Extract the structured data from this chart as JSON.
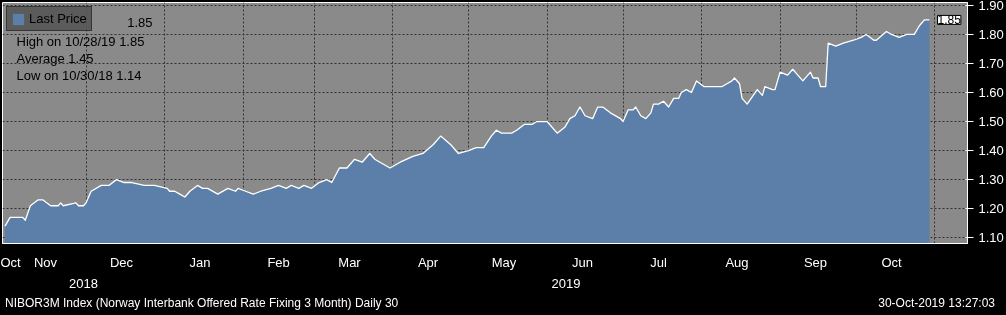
{
  "chart_data": {
    "type": "area",
    "subtitle": "NIBOR3M Index (Norway Interbank Offered Rate Fixing 3 Month)  Daily 30",
    "x": [
      "2018-10-30",
      "2018-11-01",
      "2018-11-06",
      "2018-11-07",
      "2018-11-09",
      "2018-11-12",
      "2018-11-14",
      "2018-11-17",
      "2018-11-20",
      "2018-11-21",
      "2018-11-22",
      "2018-11-27",
      "2018-11-28",
      "2018-11-30",
      "2018-12-01",
      "2018-12-03",
      "2018-12-07",
      "2018-12-10",
      "2018-12-13",
      "2018-12-16",
      "2018-12-19",
      "2018-12-24",
      "2018-12-28",
      "2019-01-02",
      "2019-01-03",
      "2019-01-05",
      "2019-01-07",
      "2019-01-09",
      "2019-01-11",
      "2019-01-14",
      "2019-01-16",
      "2019-01-18",
      "2019-01-22",
      "2019-01-26",
      "2019-01-29",
      "2019-01-30",
      "2019-02-02",
      "2019-02-05",
      "2019-02-08",
      "2019-02-12",
      "2019-02-15",
      "2019-02-18",
      "2019-02-20",
      "2019-02-23",
      "2019-02-25",
      "2019-02-28",
      "2019-03-03",
      "2019-03-06",
      "2019-03-08",
      "2019-03-11",
      "2019-03-14",
      "2019-03-17",
      "2019-03-20",
      "2019-03-23",
      "2019-03-25",
      "2019-03-27",
      "2019-03-31",
      "2019-04-04",
      "2019-04-09",
      "2019-04-13",
      "2019-04-17",
      "2019-04-20",
      "2019-04-24",
      "2019-04-27",
      "2019-05-01",
      "2019-05-04",
      "2019-05-07",
      "2019-05-10",
      "2019-05-12",
      "2019-05-14",
      "2019-05-18",
      "2019-05-20",
      "2019-05-23",
      "2019-05-26",
      "2019-05-28",
      "2019-06-01",
      "2019-06-05",
      "2019-06-08",
      "2019-06-10",
      "2019-06-12",
      "2019-06-14",
      "2019-06-16",
      "2019-06-19",
      "2019-06-21",
      "2019-06-23",
      "2019-06-26",
      "2019-06-30",
      "2019-07-01",
      "2019-07-03",
      "2019-07-05",
      "2019-07-06",
      "2019-07-08",
      "2019-07-10",
      "2019-07-12",
      "2019-07-13",
      "2019-07-15",
      "2019-07-17",
      "2019-07-19",
      "2019-07-21",
      "2019-07-23",
      "2019-07-24",
      "2019-07-26",
      "2019-07-28",
      "2019-07-30",
      "2019-08-02",
      "2019-08-04",
      "2019-08-06",
      "2019-08-09",
      "2019-08-11",
      "2019-08-13",
      "2019-08-14",
      "2019-08-16",
      "2019-08-17",
      "2019-08-19",
      "2019-08-23",
      "2019-08-25",
      "2019-08-26",
      "2019-08-29",
      "2019-08-30",
      "2019-09-01",
      "2019-09-04",
      "2019-09-06",
      "2019-09-08",
      "2019-09-10",
      "2019-09-13",
      "2019-09-14",
      "2019-09-16",
      "2019-09-17",
      "2019-09-19",
      "2019-09-20",
      "2019-09-23",
      "2019-09-26",
      "2019-09-30",
      "2019-10-03",
      "2019-10-05",
      "2019-10-08",
      "2019-10-09",
      "2019-10-13",
      "2019-10-15",
      "2019-10-18",
      "2019-10-21",
      "2019-10-24",
      "2019-10-26",
      "2019-10-28",
      "2019-10-30"
    ],
    "series": [
      {
        "name": "Last Price",
        "color": "#5b7fa8",
        "values": [
          1.14,
          1.17,
          1.17,
          1.16,
          1.21,
          1.23,
          1.23,
          1.21,
          1.21,
          1.22,
          1.21,
          1.22,
          1.21,
          1.21,
          1.22,
          1.26,
          1.28,
          1.28,
          1.3,
          1.29,
          1.29,
          1.28,
          1.28,
          1.27,
          1.26,
          1.26,
          1.25,
          1.24,
          1.26,
          1.28,
          1.27,
          1.27,
          1.25,
          1.27,
          1.26,
          1.27,
          1.26,
          1.25,
          1.26,
          1.27,
          1.28,
          1.27,
          1.28,
          1.27,
          1.28,
          1.27,
          1.29,
          1.3,
          1.29,
          1.34,
          1.34,
          1.37,
          1.36,
          1.39,
          1.37,
          1.36,
          1.34,
          1.36,
          1.38,
          1.39,
          1.42,
          1.45,
          1.42,
          1.39,
          1.4,
          1.41,
          1.41,
          1.45,
          1.47,
          1.46,
          1.46,
          1.47,
          1.49,
          1.49,
          1.5,
          1.5,
          1.46,
          1.48,
          1.51,
          1.52,
          1.55,
          1.52,
          1.51,
          1.55,
          1.55,
          1.53,
          1.51,
          1.5,
          1.54,
          1.54,
          1.55,
          1.52,
          1.51,
          1.53,
          1.56,
          1.56,
          1.57,
          1.55,
          1.58,
          1.58,
          1.6,
          1.61,
          1.6,
          1.64,
          1.62,
          1.62,
          1.62,
          1.62,
          1.63,
          1.64,
          1.65,
          1.63,
          1.58,
          1.56,
          1.61,
          1.59,
          1.62,
          1.61,
          1.61,
          1.67,
          1.66,
          1.68,
          1.66,
          1.64,
          1.67,
          1.65,
          1.65,
          1.62,
          1.62,
          1.77,
          1.76,
          1.77,
          1.78,
          1.79,
          1.8,
          1.78,
          1.78,
          1.81,
          1.8,
          1.79,
          1.8,
          1.8,
          1.83,
          1.85,
          1.85
        ]
      }
    ],
    "xlim": [
      "2018-10-29",
      "2019-11-14"
    ],
    "xticks": [
      {
        "value": "2018-10-30",
        "label": "Oct"
      },
      {
        "value": "2018-11-15",
        "label": "Nov"
      },
      {
        "value": "2018-12-01",
        "label": null
      },
      {
        "value": "2018-12-15",
        "label": "Dec"
      },
      {
        "value": "2019-01-01",
        "label": null
      },
      {
        "value": "2019-01-15",
        "label": "Jan"
      },
      {
        "value": "2019-02-01",
        "label": null
      },
      {
        "value": "2019-02-15",
        "label": "Feb"
      },
      {
        "value": "2019-03-01",
        "label": null
      },
      {
        "value": "2019-03-15",
        "label": "Mar"
      },
      {
        "value": "2019-04-01",
        "label": null
      },
      {
        "value": "2019-04-15",
        "label": "Apr"
      },
      {
        "value": "2019-05-01",
        "label": null
      },
      {
        "value": "2019-05-15",
        "label": "May"
      },
      {
        "value": "2019-06-01",
        "label": null
      },
      {
        "value": "2019-06-15",
        "label": "Jun"
      },
      {
        "value": "2019-07-01",
        "label": null
      },
      {
        "value": "2019-07-15",
        "label": "Jul"
      },
      {
        "value": "2019-08-01",
        "label": null
      },
      {
        "value": "2019-08-15",
        "label": "Aug"
      },
      {
        "value": "2019-09-01",
        "label": null
      },
      {
        "value": "2019-09-15",
        "label": "Sep"
      },
      {
        "value": "2019-10-01",
        "label": null
      },
      {
        "value": "2019-10-15",
        "label": "Oct"
      },
      {
        "value": "2019-11-01",
        "label": null
      }
    ],
    "ylim": [
      1.08,
      1.91
    ],
    "yticks": [
      {
        "value": 1.1,
        "label": "1.10"
      },
      {
        "value": 1.2,
        "label": "1.20"
      },
      {
        "value": 1.3,
        "label": "1.30"
      },
      {
        "value": 1.4,
        "label": "1.40"
      },
      {
        "value": 1.5,
        "label": "1.50"
      },
      {
        "value": 1.6,
        "label": "1.60"
      },
      {
        "value": 1.7,
        "label": "1.70"
      },
      {
        "value": 1.8,
        "label": "1.80"
      },
      {
        "value": 1.9,
        "label": "1.90"
      }
    ],
    "grid": true,
    "legend": "top left",
    "annotations": [
      "1.85",
      "High on 10/28/19 1.85",
      "Average 1.45",
      "Low on 10/30/18 1.14",
      "2018",
      "2019",
      "30-Oct-2019 13:27:03",
      {
        "text": "1.85",
        "x": "2019-10-30",
        "y": 1.85
      }
    ]
  }
}
